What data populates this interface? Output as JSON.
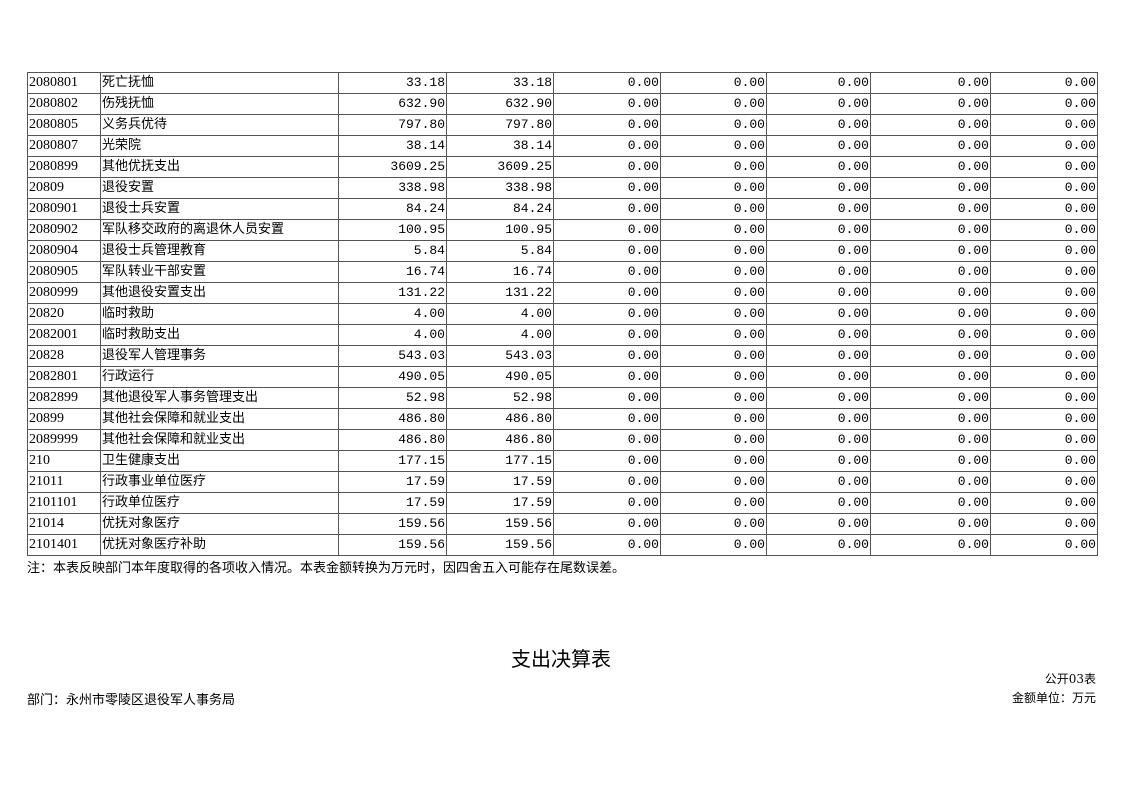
{
  "table": {
    "rows": [
      [
        "2080801",
        "死亡抚恤",
        "33.18",
        "33.18",
        "0.00",
        "0.00",
        "0.00",
        "0.00",
        "0.00"
      ],
      [
        "2080802",
        "伤残抚恤",
        "632.90",
        "632.90",
        "0.00",
        "0.00",
        "0.00",
        "0.00",
        "0.00"
      ],
      [
        "2080805",
        "义务兵优待",
        "797.80",
        "797.80",
        "0.00",
        "0.00",
        "0.00",
        "0.00",
        "0.00"
      ],
      [
        "2080807",
        "光荣院",
        "38.14",
        "38.14",
        "0.00",
        "0.00",
        "0.00",
        "0.00",
        "0.00"
      ],
      [
        "2080899",
        "其他优抚支出",
        "3609.25",
        "3609.25",
        "0.00",
        "0.00",
        "0.00",
        "0.00",
        "0.00"
      ],
      [
        "20809",
        "退役安置",
        "338.98",
        "338.98",
        "0.00",
        "0.00",
        "0.00",
        "0.00",
        "0.00"
      ],
      [
        "2080901",
        "退役士兵安置",
        "84.24",
        "84.24",
        "0.00",
        "0.00",
        "0.00",
        "0.00",
        "0.00"
      ],
      [
        "2080902",
        "军队移交政府的离退休人员安置",
        "100.95",
        "100.95",
        "0.00",
        "0.00",
        "0.00",
        "0.00",
        "0.00"
      ],
      [
        "2080904",
        "退役士兵管理教育",
        "5.84",
        "5.84",
        "0.00",
        "0.00",
        "0.00",
        "0.00",
        "0.00"
      ],
      [
        "2080905",
        "军队转业干部安置",
        "16.74",
        "16.74",
        "0.00",
        "0.00",
        "0.00",
        "0.00",
        "0.00"
      ],
      [
        "2080999",
        "其他退役安置支出",
        "131.22",
        "131.22",
        "0.00",
        "0.00",
        "0.00",
        "0.00",
        "0.00"
      ],
      [
        "20820",
        "临时救助",
        "4.00",
        "4.00",
        "0.00",
        "0.00",
        "0.00",
        "0.00",
        "0.00"
      ],
      [
        "2082001",
        "临时救助支出",
        "4.00",
        "4.00",
        "0.00",
        "0.00",
        "0.00",
        "0.00",
        "0.00"
      ],
      [
        "20828",
        "退役军人管理事务",
        "543.03",
        "543.03",
        "0.00",
        "0.00",
        "0.00",
        "0.00",
        "0.00"
      ],
      [
        "2082801",
        "行政运行",
        "490.05",
        "490.05",
        "0.00",
        "0.00",
        "0.00",
        "0.00",
        "0.00"
      ],
      [
        "2082899",
        "其他退役军人事务管理支出",
        "52.98",
        "52.98",
        "0.00",
        "0.00",
        "0.00",
        "0.00",
        "0.00"
      ],
      [
        "20899",
        "其他社会保障和就业支出",
        "486.80",
        "486.80",
        "0.00",
        "0.00",
        "0.00",
        "0.00",
        "0.00"
      ],
      [
        "2089999",
        "其他社会保障和就业支出",
        "486.80",
        "486.80",
        "0.00",
        "0.00",
        "0.00",
        "0.00",
        "0.00"
      ],
      [
        "210",
        "卫生健康支出",
        "177.15",
        "177.15",
        "0.00",
        "0.00",
        "0.00",
        "0.00",
        "0.00"
      ],
      [
        "21011",
        "行政事业单位医疗",
        "17.59",
        "17.59",
        "0.00",
        "0.00",
        "0.00",
        "0.00",
        "0.00"
      ],
      [
        "2101101",
        "行政单位医疗",
        "17.59",
        "17.59",
        "0.00",
        "0.00",
        "0.00",
        "0.00",
        "0.00"
      ],
      [
        "21014",
        "优抚对象医疗",
        "159.56",
        "159.56",
        "0.00",
        "0.00",
        "0.00",
        "0.00",
        "0.00"
      ],
      [
        "2101401",
        "优抚对象医疗补助",
        "159.56",
        "159.56",
        "0.00",
        "0.00",
        "0.00",
        "0.00",
        "0.00"
      ]
    ]
  },
  "note": "注：本表反映部门本年度取得的各项收入情况。本表金额转换为万元时，因四舍五入可能存在尾数误差。",
  "next_section": {
    "title": "支出决算表",
    "form_no": "公开03表",
    "department": "部门：永州市零陵区退役军人事务局",
    "unit": "金额单位：万元"
  }
}
